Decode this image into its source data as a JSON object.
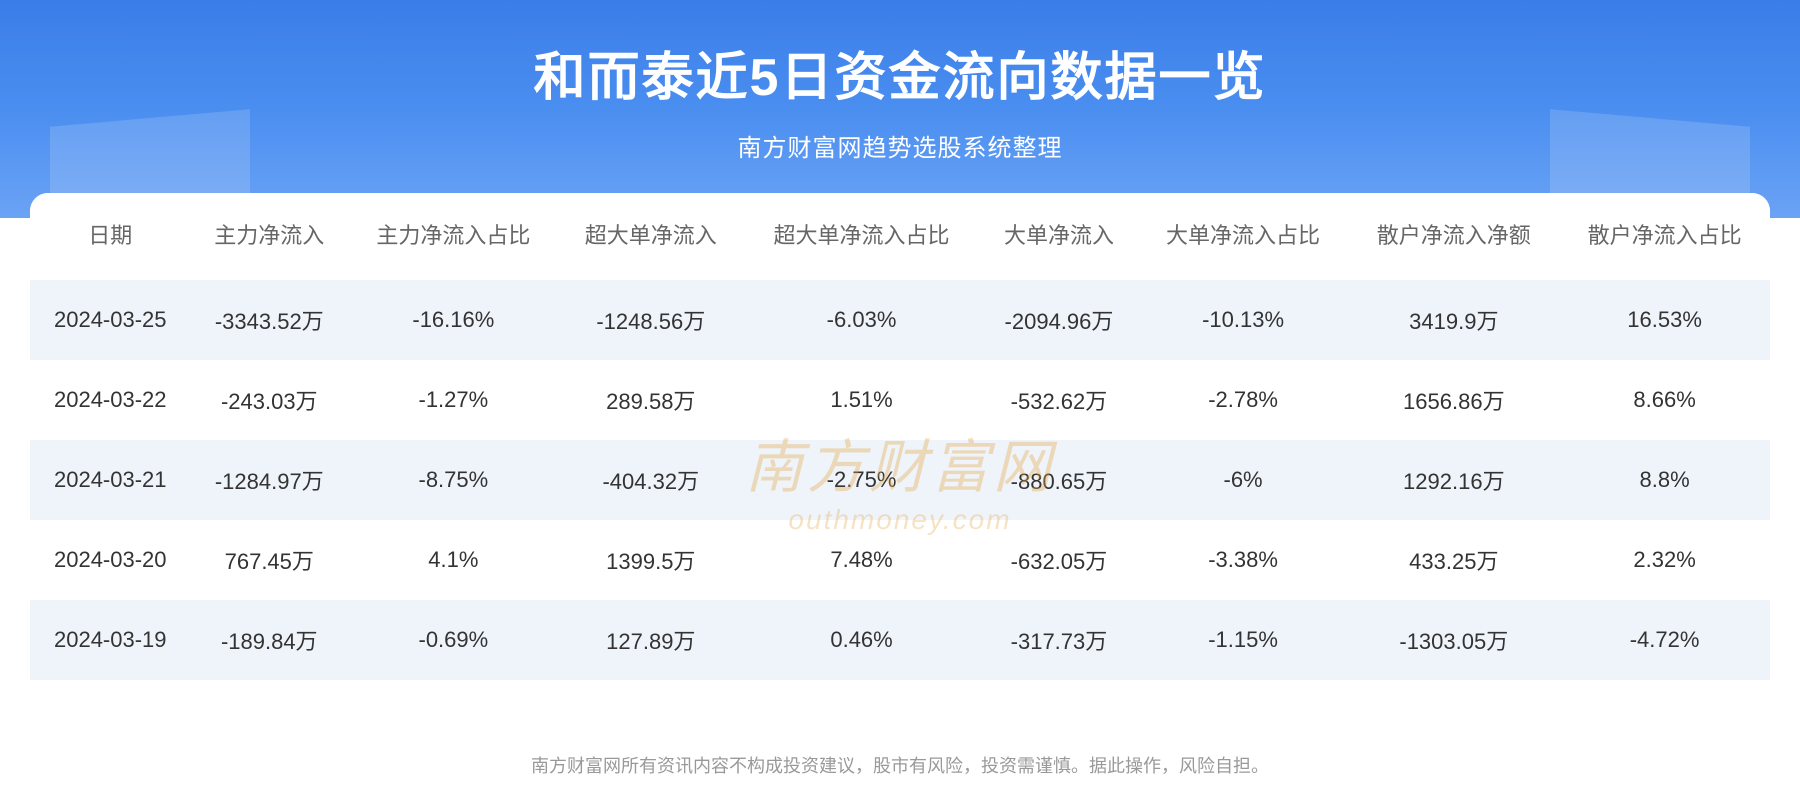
{
  "header": {
    "title": "和而泰近5日资金流向数据一览",
    "subtitle": "南方财富网趋势选股系统整理",
    "bg_gradient_start": "#3b7de8",
    "bg_gradient_end": "#6ba3f5",
    "title_color": "#ffffff",
    "title_fontsize": 52,
    "subtitle_fontsize": 24
  },
  "table": {
    "type": "table",
    "header_color": "#666666",
    "header_fontsize": 22,
    "cell_color": "#333333",
    "cell_fontsize": 22,
    "row_odd_bg": "#eff4fb",
    "row_even_bg": "#ffffff",
    "columns": [
      "日期",
      "主力净流入",
      "主力净流入占比",
      "超大单净流入",
      "超大单净流入占比",
      "大单净流入",
      "大单净流入占比",
      "散户净流入净额",
      "散户净流入占比"
    ],
    "rows": [
      [
        "2024-03-25",
        "-3343.52万",
        "-16.16%",
        "-1248.56万",
        "-6.03%",
        "-2094.96万",
        "-10.13%",
        "3419.9万",
        "16.53%"
      ],
      [
        "2024-03-22",
        "-243.03万",
        "-1.27%",
        "289.58万",
        "1.51%",
        "-532.62万",
        "-2.78%",
        "1656.86万",
        "8.66%"
      ],
      [
        "2024-03-21",
        "-1284.97万",
        "-8.75%",
        "-404.32万",
        "-2.75%",
        "-880.65万",
        "-6%",
        "1292.16万",
        "8.8%"
      ],
      [
        "2024-03-20",
        "767.45万",
        "4.1%",
        "1399.5万",
        "7.48%",
        "-632.05万",
        "-3.38%",
        "433.25万",
        "2.32%"
      ],
      [
        "2024-03-19",
        "-189.84万",
        "-0.69%",
        "127.89万",
        "0.46%",
        "-317.73万",
        "-1.15%",
        "-1303.05万",
        "-4.72%"
      ]
    ]
  },
  "watermark": {
    "text_main": "南方财富网",
    "text_sub": "outhmoney.com",
    "color": "rgba(230, 162, 60, 0.35)"
  },
  "footer": {
    "text": "南方财富网所有资讯内容不构成投资建议，股市有风险，投资需谨慎。据此操作，风险自担。",
    "color": "#999999",
    "fontsize": 18
  }
}
